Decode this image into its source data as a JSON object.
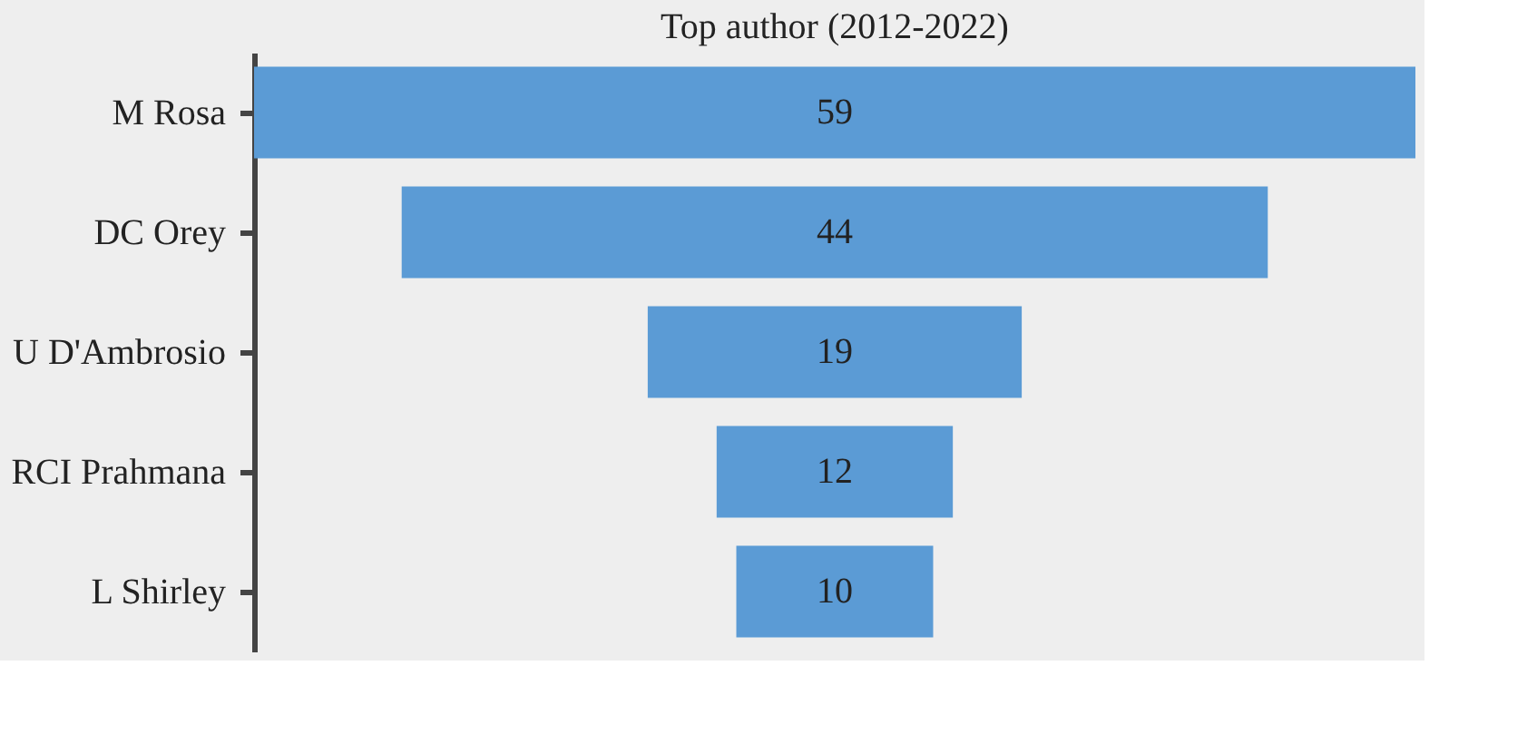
{
  "chart_data": {
    "type": "other",
    "title": "Top author (2012-2022)",
    "categories": [
      "M Rosa",
      "DC Orey",
      "U D'Ambrosio",
      "RCI Prahmana",
      "L Shirley"
    ],
    "values": [
      59,
      44,
      19,
      12,
      10
    ],
    "color": "#5b9bd5",
    "data_labels": true
  }
}
